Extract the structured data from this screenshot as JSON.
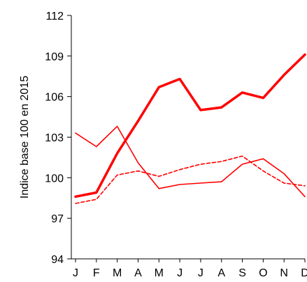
{
  "chart_data": {
    "type": "line",
    "ylabel": "Indice base 100 en 2015",
    "xlabel": "",
    "categories": [
      "J",
      "F",
      "M",
      "A",
      "M",
      "J",
      "J",
      "A",
      "S",
      "O",
      "N",
      "D"
    ],
    "ylim": [
      94,
      112
    ],
    "yticks": [
      94,
      97,
      100,
      103,
      106,
      109,
      112
    ],
    "grid": false,
    "legend": "none",
    "series": [
      {
        "style": "thick-solid",
        "color": "#ff0000",
        "values": [
          98.6,
          98.9,
          101.8,
          104.2,
          106.7,
          107.3,
          105.0,
          105.2,
          106.3,
          105.9,
          107.6,
          109.1
        ]
      },
      {
        "style": "thin-solid",
        "color": "#ff0000",
        "values": [
          103.3,
          102.3,
          103.8,
          101.1,
          99.2,
          99.5,
          99.6,
          99.7,
          101.0,
          101.4,
          100.3,
          98.6
        ]
      },
      {
        "style": "dashed",
        "color": "#ff0000",
        "values": [
          98.1,
          98.4,
          100.2,
          100.5,
          100.1,
          100.6,
          101.0,
          101.2,
          101.6,
          100.5,
          99.6,
          99.4
        ]
      }
    ]
  }
}
